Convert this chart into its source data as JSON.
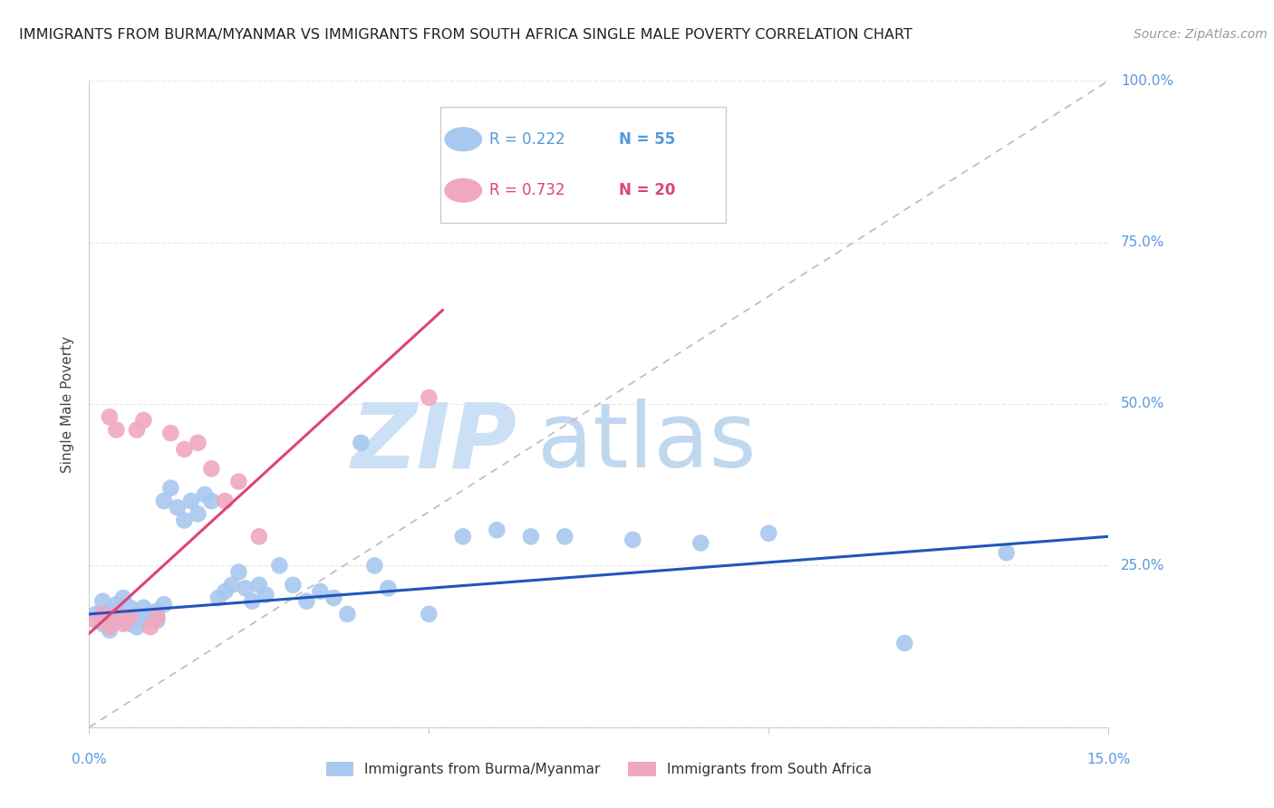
{
  "title": "IMMIGRANTS FROM BURMA/MYANMAR VS IMMIGRANTS FROM SOUTH AFRICA SINGLE MALE POVERTY CORRELATION CHART",
  "source": "Source: ZipAtlas.com",
  "ylabel": "Single Male Poverty",
  "burma_R": 0.222,
  "burma_N": 55,
  "sa_R": 0.732,
  "sa_N": 20,
  "burma_color": "#a8c8f0",
  "sa_color": "#f0a8c0",
  "burma_line_color": "#2255bb",
  "sa_line_color": "#dd4477",
  "diagonal_color": "#bbbbbb",
  "watermark_zip_color": "#ddeeff",
  "watermark_atlas_color": "#c8ddf0",
  "title_color": "#202020",
  "source_color": "#999999",
  "axis_color": "#5599dd",
  "grid_color": "#e8e8e8",
  "background_color": "#ffffff",
  "xmin": 0.0,
  "xmax": 0.15,
  "ymin": 0.0,
  "ymax": 1.0,
  "yticks": [
    0.0,
    0.25,
    0.5,
    0.75,
    1.0
  ],
  "ytick_labels": [
    "",
    "25.0%",
    "50.0%",
    "75.0%",
    "100.0%"
  ],
  "burma_line_x0": 0.0,
  "burma_line_x1": 0.15,
  "burma_line_y0": 0.175,
  "burma_line_y1": 0.295,
  "sa_line_x0": 0.0,
  "sa_line_x1": 0.052,
  "sa_line_y0": 0.145,
  "sa_line_y1": 0.645,
  "burma_x": [
    0.001,
    0.002,
    0.002,
    0.003,
    0.003,
    0.004,
    0.004,
    0.005,
    0.005,
    0.006,
    0.006,
    0.007,
    0.007,
    0.008,
    0.008,
    0.009,
    0.009,
    0.01,
    0.01,
    0.011,
    0.011,
    0.012,
    0.013,
    0.014,
    0.015,
    0.016,
    0.017,
    0.018,
    0.019,
    0.02,
    0.021,
    0.022,
    0.023,
    0.024,
    0.025,
    0.026,
    0.028,
    0.03,
    0.032,
    0.034,
    0.036,
    0.038,
    0.04,
    0.042,
    0.044,
    0.05,
    0.055,
    0.06,
    0.065,
    0.07,
    0.08,
    0.09,
    0.1,
    0.12,
    0.135
  ],
  "burma_y": [
    0.175,
    0.16,
    0.195,
    0.15,
    0.18,
    0.165,
    0.19,
    0.17,
    0.2,
    0.16,
    0.185,
    0.175,
    0.155,
    0.165,
    0.185,
    0.17,
    0.175,
    0.18,
    0.165,
    0.19,
    0.35,
    0.37,
    0.34,
    0.32,
    0.35,
    0.33,
    0.36,
    0.35,
    0.2,
    0.21,
    0.22,
    0.24,
    0.215,
    0.195,
    0.22,
    0.205,
    0.25,
    0.22,
    0.195,
    0.21,
    0.2,
    0.175,
    0.44,
    0.25,
    0.215,
    0.175,
    0.295,
    0.305,
    0.295,
    0.295,
    0.29,
    0.285,
    0.3,
    0.13,
    0.27
  ],
  "sa_x": [
    0.001,
    0.002,
    0.003,
    0.003,
    0.004,
    0.004,
    0.005,
    0.006,
    0.007,
    0.008,
    0.009,
    0.01,
    0.012,
    0.014,
    0.016,
    0.018,
    0.02,
    0.022,
    0.025,
    0.05
  ],
  "sa_y": [
    0.165,
    0.175,
    0.155,
    0.48,
    0.46,
    0.175,
    0.16,
    0.17,
    0.46,
    0.475,
    0.155,
    0.17,
    0.455,
    0.43,
    0.44,
    0.4,
    0.35,
    0.38,
    0.295,
    0.51
  ]
}
